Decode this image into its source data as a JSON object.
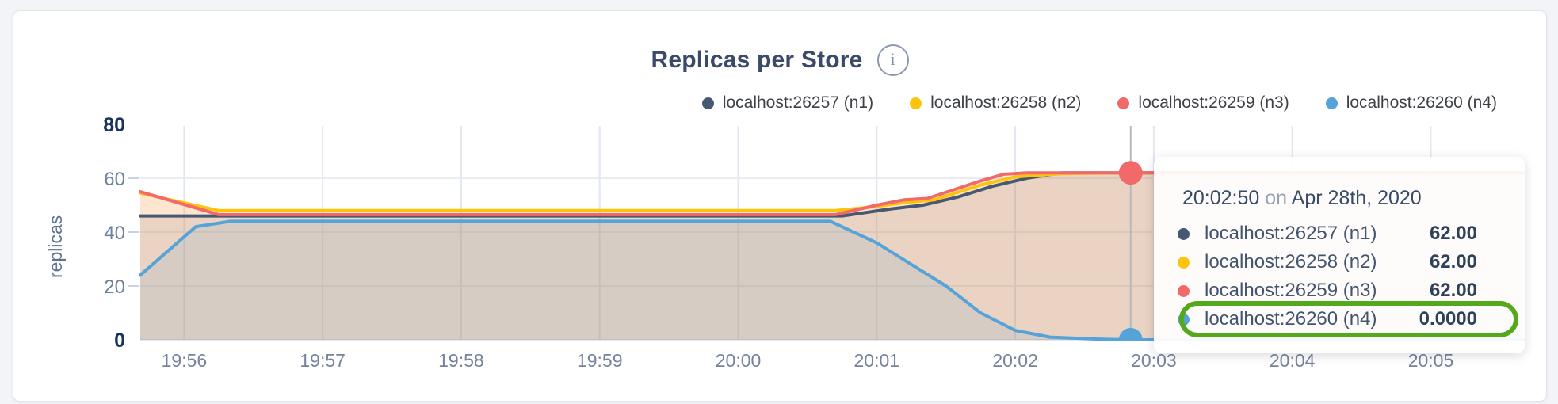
{
  "header": {
    "title": "Replicas per Store",
    "info_icon": "i"
  },
  "chart_data": {
    "type": "area",
    "title": "Replicas per Store",
    "ylabel": "replicas",
    "ylim": [
      0,
      80
    ],
    "yticks": [
      0,
      20,
      40,
      60,
      80
    ],
    "yticks_bold": [
      0,
      80
    ],
    "xticks": [
      "19:56",
      "19:57",
      "19:58",
      "19:59",
      "20:00",
      "20:01",
      "20:02",
      "20:03",
      "20:04",
      "20:05"
    ],
    "x_domain": [
      "19:55:41",
      "20:05:40"
    ],
    "grid": true,
    "legend_position": "top-right",
    "fill_opacity": 0.13,
    "series": [
      {
        "name": "localhost:26257 (n1)",
        "color": "#475872",
        "points": [
          [
            "19:55:41",
            46
          ],
          [
            "19:56:15",
            46
          ],
          [
            "20:00:45",
            46
          ],
          [
            "20:01:05",
            48.5
          ],
          [
            "20:01:20",
            50
          ],
          [
            "20:01:35",
            53
          ],
          [
            "20:01:50",
            57
          ],
          [
            "20:02:05",
            60
          ],
          [
            "20:02:20",
            62
          ],
          [
            "20:05:40",
            62
          ]
        ]
      },
      {
        "name": "localhost:26258 (n2)",
        "color": "#fec40d",
        "points": [
          [
            "19:55:41",
            54.5
          ],
          [
            "19:56:15",
            48
          ],
          [
            "20:00:42",
            48
          ],
          [
            "20:01:00",
            49.5
          ],
          [
            "20:01:12",
            51
          ],
          [
            "20:01:25",
            52
          ],
          [
            "20:01:45",
            57.5
          ],
          [
            "20:02:00",
            60.5
          ],
          [
            "20:02:20",
            61.7
          ],
          [
            "20:02:45",
            62
          ],
          [
            "20:05:40",
            62
          ]
        ]
      },
      {
        "name": "localhost:26259 (n3)",
        "color": "#f16968",
        "points": [
          [
            "19:55:41",
            55
          ],
          [
            "19:56:15",
            46.5
          ],
          [
            "20:00:42",
            46.5
          ],
          [
            "20:01:00",
            50
          ],
          [
            "20:01:12",
            52
          ],
          [
            "20:01:22",
            52.5
          ],
          [
            "20:01:45",
            59
          ],
          [
            "20:01:55",
            61.5
          ],
          [
            "20:02:05",
            62
          ],
          [
            "20:05:40",
            62
          ]
        ]
      },
      {
        "name": "localhost:26260 (n4)",
        "color": "#55a3d9",
        "points": [
          [
            "19:55:41",
            24
          ],
          [
            "19:56:05",
            42
          ],
          [
            "19:56:20",
            44
          ],
          [
            "20:00:40",
            44
          ],
          [
            "20:01:00",
            36
          ],
          [
            "20:01:15",
            28
          ],
          [
            "20:01:30",
            20
          ],
          [
            "20:01:45",
            10
          ],
          [
            "20:02:00",
            3.5
          ],
          [
            "20:02:15",
            1
          ],
          [
            "20:02:35",
            0.3
          ],
          [
            "20:02:50",
            0
          ],
          [
            "20:05:40",
            0
          ]
        ]
      }
    ],
    "crosshair": {
      "time": "20:02:50",
      "markers": [
        {
          "series": "localhost:26259 (n3)",
          "value": 62
        },
        {
          "series": "localhost:26260 (n4)",
          "value": 0
        }
      ]
    }
  },
  "tooltip": {
    "time": "20:02:50",
    "connector": "on",
    "date": "Apr 28th, 2020",
    "highlight_color": "#54a81b",
    "rows": [
      {
        "series": "localhost:26257 (n1)",
        "color": "#475872",
        "value": "62.00",
        "highlighted": false
      },
      {
        "series": "localhost:26258 (n2)",
        "color": "#fec40d",
        "value": "62.00",
        "highlighted": false
      },
      {
        "series": "localhost:26259 (n3)",
        "color": "#f16968",
        "value": "62.00",
        "highlighted": false
      },
      {
        "series": "localhost:26260 (n4)",
        "color": "#55a3d9",
        "value": "0.0000",
        "highlighted": true
      }
    ]
  }
}
